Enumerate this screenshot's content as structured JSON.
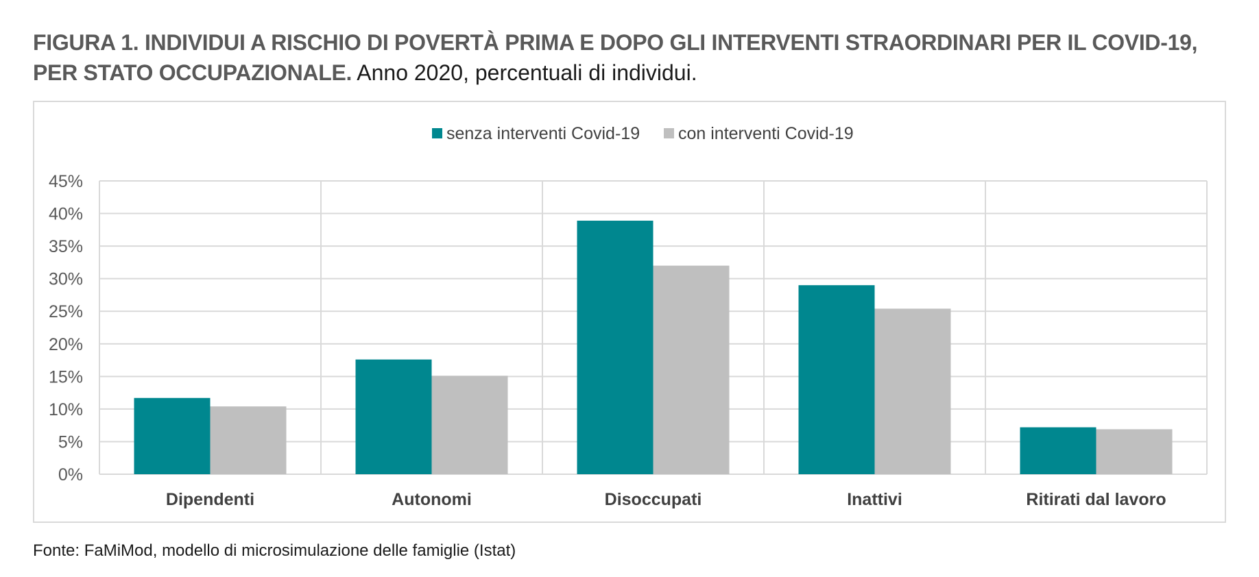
{
  "title": {
    "bold": "FIGURA 1. INDIVIDUI A RISCHIO DI POVERTÀ PRIMA E DOPO GLI INTERVENTI STRAORDINARI PER IL COVID-19, PER STATO OCCUPAZIONALE.",
    "normal": " Anno 2020, percentuali di individui."
  },
  "source": "Fonte: FaMiMod, modello di microsimulazione delle famiglie (Istat)",
  "colors": {
    "series1": "#00878f",
    "series2": "#bfbfbf",
    "grid": "#d9d9d9"
  },
  "chart_data": {
    "type": "bar",
    "categories": [
      "Dipendenti",
      "Autonomi",
      "Disoccupati",
      "Inattivi",
      "Ritirati dal lavoro"
    ],
    "series": [
      {
        "name": "senza interventi Covid-19",
        "values": [
          11.7,
          17.6,
          38.9,
          29.0,
          7.2
        ]
      },
      {
        "name": "con interventi Covid-19",
        "values": [
          10.4,
          15.1,
          32.0,
          25.4,
          6.9
        ]
      }
    ],
    "ylim": [
      0,
      45
    ],
    "yticks": [
      "0%",
      "5%",
      "10%",
      "15%",
      "20%",
      "25%",
      "30%",
      "35%",
      "40%",
      "45%"
    ],
    "ytick_values": [
      0,
      5,
      10,
      15,
      20,
      25,
      30,
      35,
      40,
      45
    ],
    "legend_position": "top-center",
    "grid": true
  }
}
